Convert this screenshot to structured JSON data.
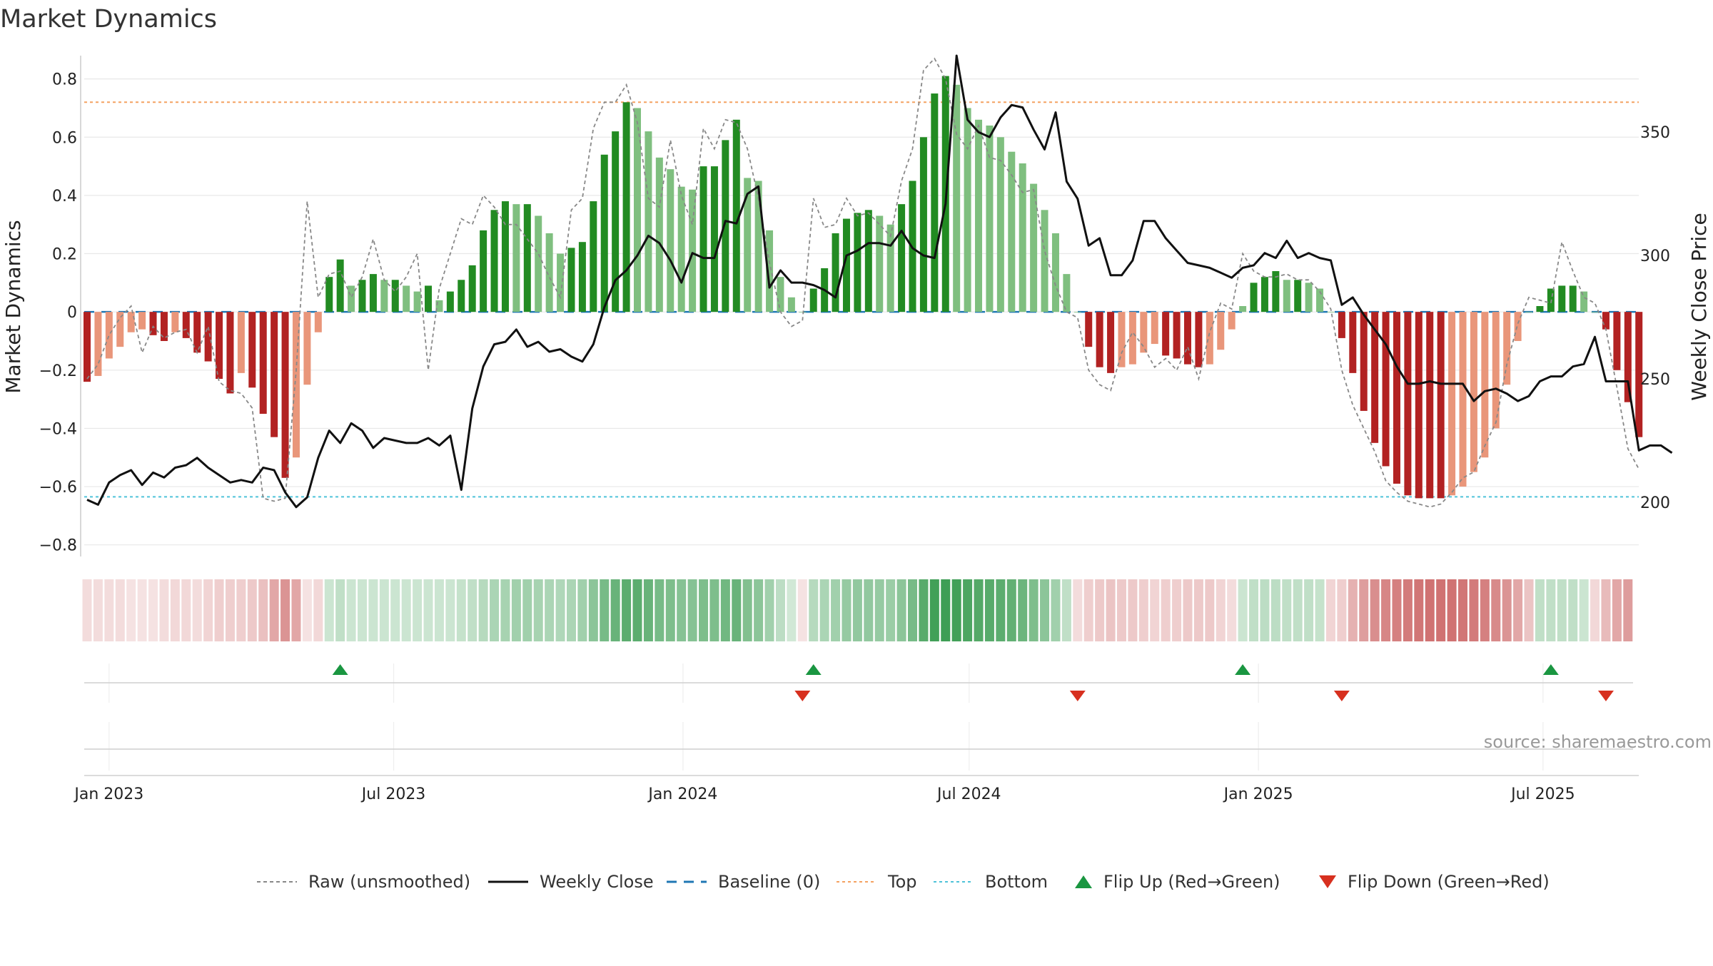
{
  "chart_data": {
    "type": "bar",
    "title": "Market Dynamics",
    "ylabel": "Market Dynamics",
    "y2label": "Weekly Close Price",
    "ylim": [
      -0.84,
      0.88
    ],
    "y2lim": [
      178,
      381
    ],
    "yticks": [
      "0.8",
      "0.6",
      "0.4",
      "0.2",
      "0",
      "−0.2",
      "−0.4",
      "−0.6",
      "−0.8"
    ],
    "yticks_values": [
      0.8,
      0.6,
      0.4,
      0.2,
      0,
      -0.2,
      -0.4,
      -0.6,
      -0.8
    ],
    "y2ticks": [
      "350",
      "300",
      "250",
      "200"
    ],
    "y2ticks_values": [
      350,
      300,
      250,
      200
    ],
    "xticks": [
      "Jan 2023",
      "Jul 2023",
      "Jan 2024",
      "Jul 2024",
      "Jan 2025",
      "Jul 2025"
    ],
    "xticks_values": [
      "2023-01-01",
      "2023-07-01",
      "2024-01-01",
      "2024-07-01",
      "2025-01-01",
      "2025-07-01"
    ],
    "start_date": "2022-12-18",
    "top_level": 0.72,
    "bottom_level": -0.635,
    "baseline": 0,
    "smoothed": [
      -0.24,
      -0.22,
      -0.16,
      -0.12,
      -0.07,
      -0.06,
      -0.08,
      -0.1,
      -0.07,
      -0.09,
      -0.14,
      -0.17,
      -0.23,
      -0.28,
      -0.21,
      -0.26,
      -0.35,
      -0.43,
      -0.57,
      -0.5,
      -0.25,
      -0.07,
      0.12,
      0.18,
      0.09,
      0.11,
      0.13,
      0.11,
      0.11,
      0.09,
      0.07,
      0.09,
      0.04,
      0.07,
      0.11,
      0.16,
      0.28,
      0.35,
      0.38,
      0.37,
      0.37,
      0.33,
      0.27,
      0.2,
      0.22,
      0.24,
      0.38,
      0.54,
      0.62,
      0.72,
      0.7,
      0.62,
      0.53,
      0.49,
      0.43,
      0.42,
      0.5,
      0.5,
      0.59,
      0.66,
      0.46,
      0.45,
      0.28,
      0.12,
      0.05,
      0,
      0.08,
      0.15,
      0.27,
      0.32,
      0.34,
      0.35,
      0.33,
      0.3,
      0.37,
      0.45,
      0.6,
      0.75,
      0.81,
      0.78,
      0.7,
      0.66,
      0.64,
      0.6,
      0.55,
      0.51,
      0.44,
      0.35,
      0.27,
      0.13,
      0,
      -0.12,
      -0.19,
      -0.21,
      -0.19,
      -0.18,
      -0.14,
      -0.11,
      -0.15,
      -0.16,
      -0.18,
      -0.19,
      -0.18,
      -0.13,
      -0.06,
      0.02,
      0.1,
      0.12,
      0.14,
      0.11,
      0.11,
      0.1,
      0.08,
      0,
      -0.09,
      -0.21,
      -0.34,
      -0.45,
      -0.53,
      -0.59,
      -0.63,
      -0.64,
      -0.64,
      -0.64,
      -0.63,
      -0.6,
      -0.55,
      -0.5,
      -0.4,
      -0.25,
      -0.1,
      0,
      0.02,
      0.08,
      0.09,
      0.09,
      0.07,
      0,
      -0.06,
      -0.2,
      -0.31,
      -0.43
    ],
    "raw": [
      -0.23,
      -0.18,
      -0.08,
      -0.02,
      0.02,
      -0.14,
      -0.05,
      -0.09,
      -0.07,
      -0.06,
      -0.14,
      -0.05,
      -0.24,
      -0.27,
      -0.28,
      -0.33,
      -0.64,
      -0.65,
      -0.64,
      -0.2,
      0.38,
      0.05,
      0.13,
      0.14,
      0.05,
      0.12,
      0.25,
      0.11,
      0.07,
      0.12,
      0.2,
      -0.2,
      0.08,
      0.2,
      0.32,
      0.3,
      0.4,
      0.36,
      0.3,
      0.3,
      0.25,
      0.2,
      0.12,
      0.05,
      0.35,
      0.39,
      0.63,
      0.72,
      0.72,
      0.78,
      0.65,
      0.39,
      0.36,
      0.59,
      0.4,
      0.3,
      0.63,
      0.56,
      0.66,
      0.65,
      0.56,
      0.39,
      0.17,
      0,
      -0.05,
      -0.03,
      0.39,
      0.29,
      0.3,
      0.39,
      0.33,
      0.34,
      0.3,
      0.26,
      0.45,
      0.56,
      0.83,
      0.87,
      0.8,
      0.61,
      0.56,
      0.64,
      0.53,
      0.52,
      0.47,
      0.41,
      0.42,
      0.21,
      0.09,
      0,
      -0.02,
      -0.2,
      -0.25,
      -0.27,
      -0.14,
      -0.07,
      -0.12,
      -0.19,
      -0.16,
      -0.2,
      -0.12,
      -0.23,
      -0.07,
      0.03,
      0.01,
      0.2,
      0.14,
      0.12,
      0.12,
      0.13,
      0.11,
      0.11,
      0.07,
      0.01,
      -0.2,
      -0.32,
      -0.4,
      -0.48,
      -0.58,
      -0.62,
      -0.65,
      -0.66,
      -0.67,
      -0.66,
      -0.62,
      -0.57,
      -0.55,
      -0.46,
      -0.38,
      -0.18,
      -0.04,
      0.05,
      0.04,
      0.03,
      0.24,
      0.14,
      0.05,
      0.03,
      -0.06,
      -0.26,
      -0.47,
      -0.54
    ],
    "weekly_close": [
      201,
      199,
      208,
      211,
      213,
      207,
      212,
      210,
      214,
      215,
      218,
      214,
      211,
      208,
      209,
      208,
      214,
      213,
      204,
      198,
      202,
      218,
      229,
      224,
      232,
      229,
      222,
      226,
      225,
      224,
      224,
      226,
      223,
      227,
      205,
      238,
      255,
      264,
      265,
      270,
      263,
      265,
      261,
      262,
      259,
      257,
      264,
      279,
      290,
      294,
      300,
      308,
      305,
      298,
      289,
      301,
      299,
      299,
      314,
      313,
      325,
      328,
      287,
      294,
      289,
      289,
      288,
      286,
      283,
      300,
      302,
      305,
      305,
      304,
      310,
      303,
      300,
      299,
      321,
      381,
      355,
      350,
      348,
      356,
      361,
      360,
      351,
      343,
      358,
      330,
      323,
      304,
      307,
      292,
      292,
      298,
      314,
      314,
      307,
      302,
      297,
      296,
      295,
      293,
      291,
      295,
      296,
      301,
      299,
      306,
      299,
      301,
      299,
      298,
      280,
      283,
      276,
      270,
      264,
      255,
      248,
      248,
      249,
      248,
      248,
      248,
      241,
      245,
      246,
      244,
      241,
      243,
      249,
      251,
      251,
      255,
      256,
      267,
      249,
      249,
      249,
      221,
      223,
      223,
      220
    ],
    "heat_levels": [
      -0.18,
      -0.18,
      -0.18,
      -0.18,
      -0.15,
      -0.15,
      -0.15,
      -0.18,
      -0.2,
      -0.2,
      -0.18,
      -0.22,
      -0.25,
      -0.25,
      -0.25,
      -0.28,
      -0.32,
      -0.45,
      -0.55,
      -0.45,
      -0.15,
      -0.2,
      -0.25,
      -0.3,
      -0.25,
      -0.25,
      -0.25,
      -0.25,
      -0.25,
      -0.25,
      -0.25,
      -0.25,
      -0.25,
      -0.25,
      -0.28,
      -0.3,
      -0.35,
      -0.4,
      -0.42,
      -0.45,
      -0.45,
      -0.42,
      -0.4,
      -0.38,
      -0.4,
      -0.45,
      -0.55,
      -0.65,
      -0.72,
      -0.78,
      -0.78,
      -0.72,
      -0.65,
      -0.62,
      -0.58,
      -0.58,
      -0.62,
      -0.62,
      -0.68,
      -0.72,
      -0.6,
      -0.55,
      -0.45,
      -0.32,
      -0.22,
      -0.15,
      -0.35,
      -0.4,
      -0.45,
      -0.5,
      -0.52,
      -0.52,
      -0.5,
      -0.48,
      -0.55,
      -0.65,
      -0.8,
      -0.9,
      -0.92,
      -0.9,
      -0.85,
      -0.82,
      -0.8,
      -0.78,
      -0.75,
      -0.7,
      -0.62,
      -0.55,
      -0.45,
      -0.3,
      -0.18,
      -0.25,
      -0.28,
      -0.3,
      -0.28,
      -0.28,
      -0.25,
      -0.22,
      -0.25,
      -0.25,
      -0.28,
      -0.28,
      -0.28,
      -0.22,
      -0.18,
      -0.25,
      -0.3,
      -0.32,
      -0.32,
      -0.3,
      -0.3,
      -0.3,
      -0.28,
      -0.22,
      -0.25,
      -0.4,
      -0.5,
      -0.58,
      -0.62,
      -0.65,
      -0.68,
      -0.7,
      -0.72,
      -0.72,
      -0.72,
      -0.7,
      -0.68,
      -0.65,
      -0.6,
      -0.55,
      -0.45,
      -0.3,
      -0.3,
      -0.3,
      -0.3,
      -0.3,
      -0.25,
      -0.2,
      -0.35,
      -0.45,
      -0.5
    ],
    "flip_up": [
      23,
      66,
      105,
      133
    ],
    "flip_down": [
      65,
      90,
      114,
      138
    ],
    "colors": {
      "strong_green": "#228b22",
      "light_green": "#7fbf7f",
      "strong_red": "#b22222",
      "light_red": "#e9967a",
      "raw_line": "#888888",
      "close_line": "#111111",
      "baseline": "#1f77b4",
      "top": "#f4a261",
      "bottom": "#4fc3d9",
      "flip_up": "#1a9641",
      "flip_down": "#d7301f",
      "grid": "#e8e8e8"
    },
    "legend": [
      {
        "label": "Raw (unsmoothed)",
        "marker": "raw-dashed-line"
      },
      {
        "label": "Weekly Close",
        "marker": "solid-black-line"
      },
      {
        "label": "Baseline (0)",
        "marker": "blue-dashed-line"
      },
      {
        "label": "Top",
        "marker": "orange-dotted-line"
      },
      {
        "label": "Bottom",
        "marker": "cyan-dotted-line"
      },
      {
        "label": "Flip Up (Red→Green)",
        "marker": "green-up-triangle"
      },
      {
        "label": "Flip Down (Green→Red)",
        "marker": "red-down-triangle"
      }
    ],
    "source": "source: sharemaestro.com"
  }
}
